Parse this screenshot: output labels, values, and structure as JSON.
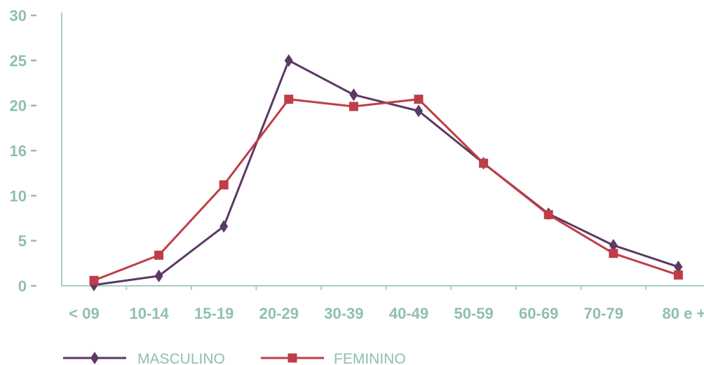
{
  "chart_data": {
    "type": "line",
    "categories": [
      "< 09",
      "10-14",
      "15-19",
      "20-29",
      "30-39",
      "40-49",
      "50-59",
      "60-69",
      "70-79",
      "80 e +"
    ],
    "y_tick_labels": [
      "0",
      "5",
      "10",
      "16",
      "20",
      "25",
      "30"
    ],
    "ylim": [
      0,
      30
    ],
    "grid": false,
    "legend_position": "bottom-left",
    "series": [
      {
        "name": "MASCULINO",
        "marker": "diamond",
        "color": "#5B3A63",
        "values": [
          0.1,
          1.1,
          6.6,
          25.0,
          21.2,
          19.4,
          13.6,
          8.0,
          4.5,
          2.1
        ]
      },
      {
        "name": "FEMININO",
        "marker": "square",
        "color": "#BF3D47",
        "values": [
          0.6,
          3.4,
          11.2,
          20.7,
          19.9,
          20.7,
          13.6,
          7.9,
          3.6,
          1.2
        ]
      }
    ]
  },
  "colors": {
    "axis": "#A8CFC0",
    "tick_text": "#8FBFB0",
    "legend_text": "#8FBFB0"
  }
}
